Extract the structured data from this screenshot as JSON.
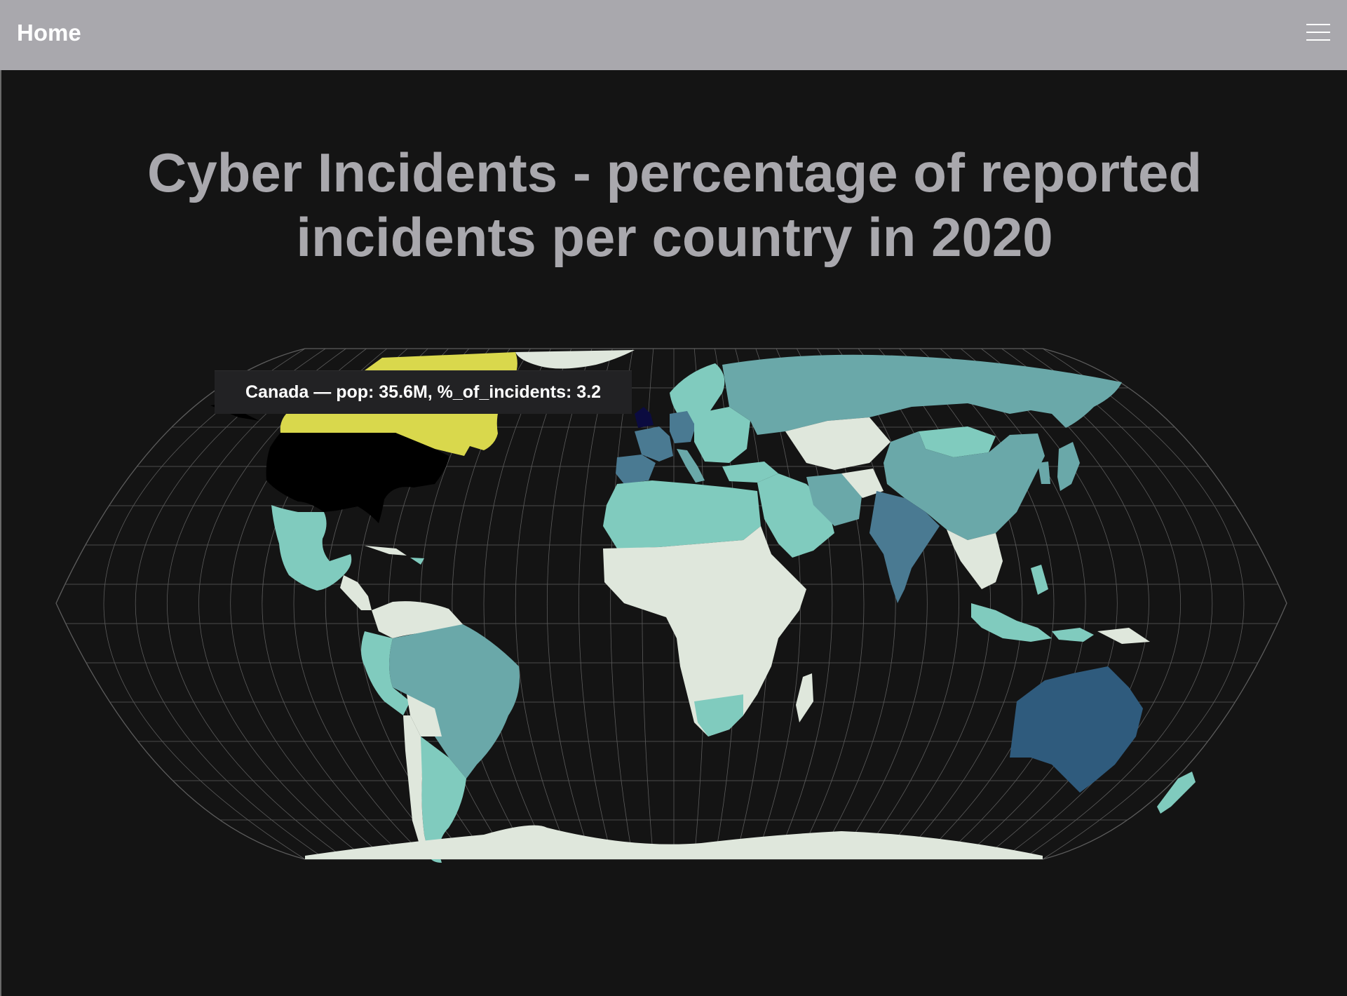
{
  "navbar": {
    "home_label": "Home",
    "menu_icon": "hamburger-menu-icon",
    "background": "#a9a8ad"
  },
  "title": {
    "line1": "Cyber Incidents - percentage of reported",
    "line2": "incidents per country in 2020"
  },
  "tooltip": {
    "text": "Canada — pop: 35.6M, %_of_incidents: 3.2"
  },
  "map": {
    "type": "choropleth",
    "projection": "robinson",
    "graticule": true,
    "colors": {
      "background": "#141414",
      "graticule": "#5c5c5c",
      "lowest": "#dfe7dc",
      "low": "#80cbbe",
      "mid": "#6aa8a9",
      "mid_high": "#4a7a92",
      "high": "#2f5b7d",
      "higher": "#d9d84c",
      "highest": "#000000",
      "uk": "#0b0b40"
    },
    "highlighted_country": "Canada",
    "highlighted_values": {
      "pop": "35.6M",
      "%_of_incidents": 3.2
    }
  }
}
